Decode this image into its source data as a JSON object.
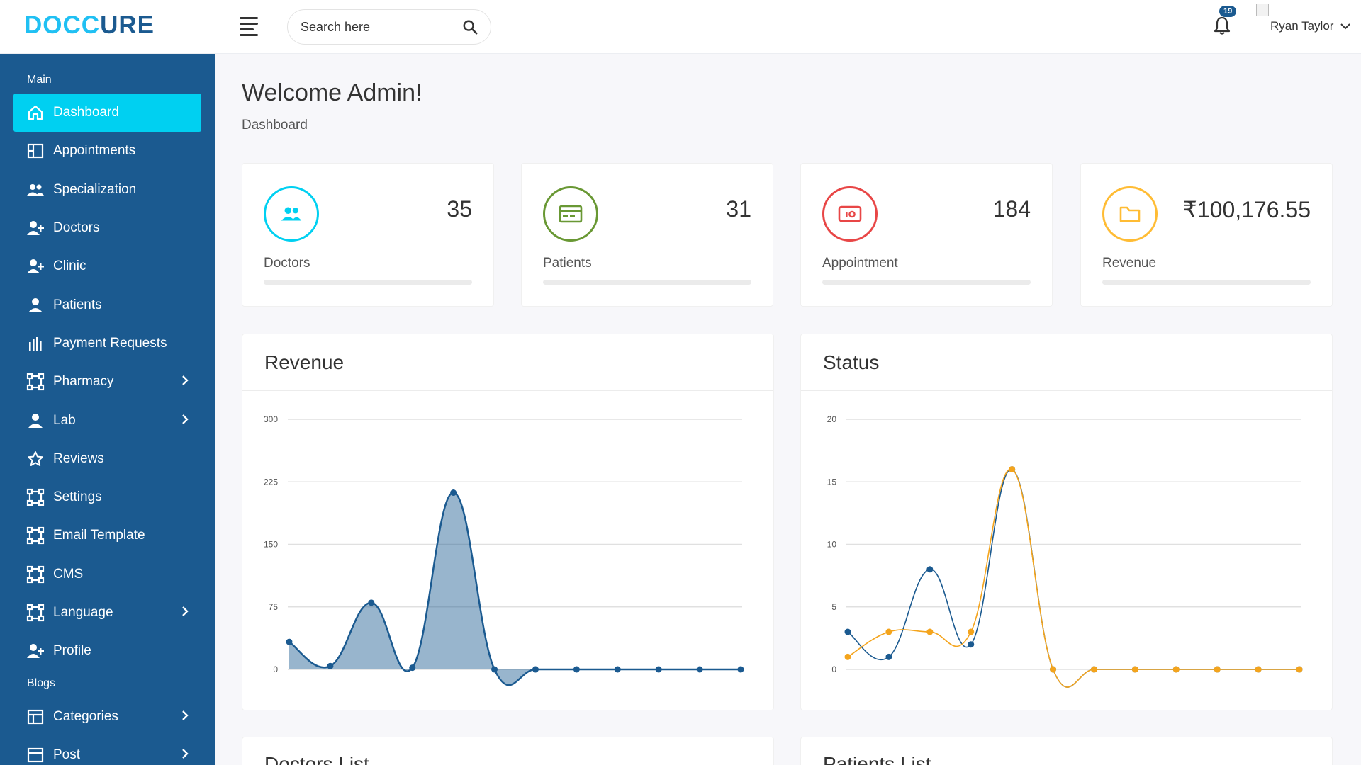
{
  "brand": {
    "part1": "DOCC",
    "part2": "URE"
  },
  "search": {
    "placeholder": "Search here"
  },
  "notifications": {
    "count": "19"
  },
  "user": {
    "name": "Ryan Taylor"
  },
  "sidebar": {
    "sections": [
      {
        "title": "Main",
        "items": [
          {
            "label": "Dashboard",
            "icon": "home-icon",
            "active": true
          },
          {
            "label": "Appointments",
            "icon": "layout-icon"
          },
          {
            "label": "Specialization",
            "icon": "users-icon"
          },
          {
            "label": "Doctors",
            "icon": "user-plus-icon"
          },
          {
            "label": "Clinic",
            "icon": "user-plus-icon"
          },
          {
            "label": "Patients",
            "icon": "user-icon"
          },
          {
            "label": "Payment Requests",
            "icon": "bar-chart-icon"
          },
          {
            "label": "Pharmacy",
            "icon": "frame-icon",
            "submenu": true
          },
          {
            "label": "Lab",
            "icon": "user-icon",
            "submenu": true
          },
          {
            "label": "Reviews",
            "icon": "star-icon"
          },
          {
            "label": "Settings",
            "icon": "frame-icon"
          },
          {
            "label": "Email Template",
            "icon": "frame-icon"
          },
          {
            "label": "CMS",
            "icon": "frame-icon"
          },
          {
            "label": "Language",
            "icon": "frame-icon",
            "submenu": true
          },
          {
            "label": "Profile",
            "icon": "user-plus-icon"
          }
        ]
      },
      {
        "title": "Blogs",
        "items": [
          {
            "label": "Categories",
            "icon": "categories-icon",
            "submenu": true
          },
          {
            "label": "Post",
            "icon": "post-icon",
            "submenu": true
          }
        ]
      }
    ]
  },
  "page": {
    "title": "Welcome Admin!",
    "breadcrumb": "Dashboard"
  },
  "stats": [
    {
      "value": "35",
      "label": "Doctors",
      "icon": "users-icon",
      "color": "#00d0f1"
    },
    {
      "value": "31",
      "label": "Patients",
      "icon": "credit-card-icon",
      "color": "#699834"
    },
    {
      "value": "184",
      "label": "Appointment",
      "icon": "money-icon",
      "color": "#e84646"
    },
    {
      "value": "₹100,176.55",
      "label": "Revenue",
      "icon": "folder-icon",
      "color": "#ffbc34"
    }
  ],
  "cards": {
    "revenue_title": "Revenue",
    "status_title": "Status",
    "doctors_list_title": "Doctors List",
    "patients_list_title": "Patients List"
  },
  "chart_data": [
    {
      "type": "area",
      "title": "Revenue",
      "ylim": [
        0,
        300
      ],
      "yticks": [
        "0",
        "75",
        "150",
        "225",
        "300"
      ],
      "grid": true,
      "series": [
        {
          "color": "#1b5a90",
          "values": [
            33,
            4,
            80,
            2,
            212,
            0,
            0,
            0,
            0,
            0,
            0,
            0
          ]
        }
      ]
    },
    {
      "type": "line",
      "title": "Status",
      "ylim": [
        0,
        20
      ],
      "yticks": [
        "0",
        "5",
        "10",
        "15",
        "20"
      ],
      "grid": true,
      "series": [
        {
          "color": "#1b5a90",
          "values": [
            3,
            1,
            8,
            2,
            16,
            0,
            0,
            0,
            0,
            0,
            0,
            0
          ]
        },
        {
          "color": "#f4a41c",
          "values": [
            1,
            3,
            3,
            3,
            16,
            0,
            0,
            0,
            0,
            0,
            0,
            0
          ]
        }
      ]
    }
  ]
}
